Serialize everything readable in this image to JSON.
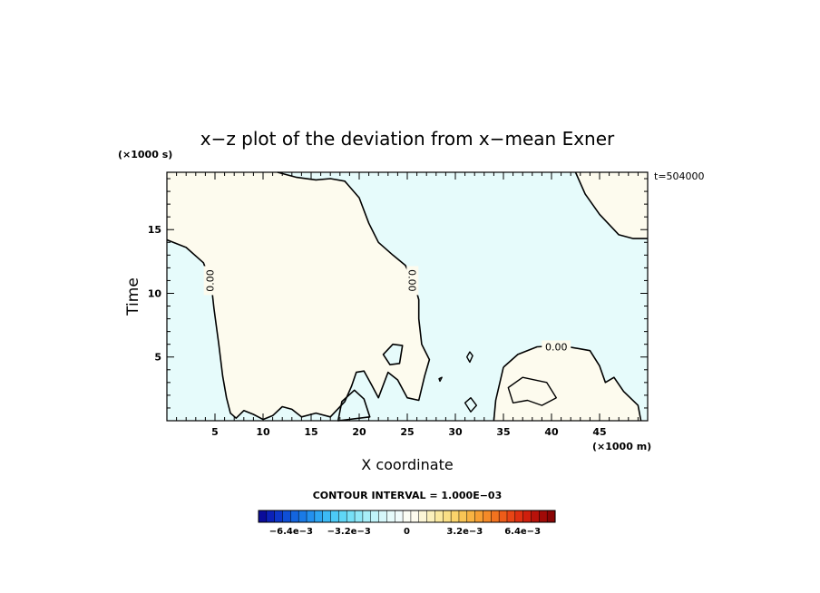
{
  "chart_data": {
    "type": "contour",
    "title": "x−z plot of the deviation from x−mean Exner",
    "xlabel": "X coordinate",
    "ylabel": "Time",
    "x_unit": "(×1000 m)",
    "y_unit": "(×1000 s)",
    "time_stamp": "t=504000",
    "xlim": [
      0,
      50
    ],
    "ylim": [
      0,
      19.5
    ],
    "x_ticks": [
      5,
      10,
      15,
      20,
      25,
      30,
      35,
      40,
      45
    ],
    "y_ticks": [
      5,
      10,
      15
    ],
    "contour_labels": [
      "0.00",
      "0.00",
      "0.00"
    ],
    "contour_label_positions": [
      [
        4.5,
        11.0
      ],
      [
        25.5,
        11.0
      ],
      [
        40.5,
        5.8
      ]
    ],
    "region_colors": {
      "positive": "#fdfbee",
      "negative": "#e6fbfb"
    },
    "zero_contour_boundary_positive_region": [
      [
        0,
        14.2
      ],
      [
        2,
        13.6
      ],
      [
        3.8,
        12.4
      ],
      [
        4.6,
        10.8
      ],
      [
        4.9,
        8.8
      ],
      [
        5.4,
        6.0
      ],
      [
        5.8,
        3.5
      ],
      [
        6.2,
        1.8
      ],
      [
        6.6,
        0.6
      ],
      [
        7.2,
        0.2
      ],
      [
        8,
        0.8
      ],
      [
        9,
        0.5
      ],
      [
        10,
        0.1
      ],
      [
        11,
        0.4
      ],
      [
        12,
        1.1
      ],
      [
        13,
        0.9
      ],
      [
        14,
        0.3
      ],
      [
        15.5,
        0.6
      ],
      [
        17,
        0.3
      ],
      [
        18.5,
        1.5
      ],
      [
        19.2,
        2.7
      ],
      [
        19.7,
        3.8
      ],
      [
        20.5,
        3.9
      ],
      [
        21.3,
        2.8
      ],
      [
        22,
        1.8
      ],
      [
        23,
        3.8
      ],
      [
        24,
        3.2
      ],
      [
        25,
        1.8
      ],
      [
        26.2,
        1.6
      ],
      [
        26.8,
        3.5
      ],
      [
        27.3,
        4.8
      ],
      [
        26.5,
        6.0
      ],
      [
        26.2,
        8.0
      ],
      [
        26.2,
        9.5
      ],
      [
        25.7,
        10.8
      ],
      [
        24.8,
        12.2
      ],
      [
        23.5,
        13.0
      ],
      [
        22,
        14.0
      ],
      [
        21,
        15.5
      ],
      [
        20,
        17.5
      ],
      [
        18.5,
        18.8
      ],
      [
        17,
        19.0
      ],
      [
        15.5,
        18.9
      ],
      [
        13.5,
        19.1
      ],
      [
        11.5,
        19.5
      ],
      [
        0,
        19.5
      ]
    ],
    "zero_contour_positive_region_upper_right": [
      [
        42.5,
        19.5
      ],
      [
        43.5,
        17.8
      ],
      [
        45,
        16.2
      ],
      [
        47,
        14.6
      ],
      [
        48.5,
        14.3
      ],
      [
        50,
        14.3
      ],
      [
        50,
        19.5
      ]
    ],
    "zero_contour_positive_region_lower_right": [
      [
        35,
        4.2
      ],
      [
        36.5,
        5.2
      ],
      [
        38.5,
        5.8
      ],
      [
        41,
        5.9
      ],
      [
        44,
        5.5
      ],
      [
        45,
        4.3
      ],
      [
        45.6,
        3.0
      ],
      [
        46.5,
        3.4
      ],
      [
        47.5,
        2.3
      ],
      [
        49.0,
        1.2
      ],
      [
        49.3,
        0
      ],
      [
        34.0,
        0
      ],
      [
        34.2,
        1.6
      ]
    ],
    "zero_contour_negative_islands": [
      [
        [
          22.5,
          5.2
        ],
        [
          23.5,
          6.0
        ],
        [
          24.5,
          5.9
        ],
        [
          24.2,
          4.5
        ],
        [
          23.2,
          4.4
        ]
      ],
      [
        [
          17.8,
          0
        ],
        [
          18.2,
          1.5
        ],
        [
          19.5,
          2.4
        ],
        [
          20.5,
          1.7
        ],
        [
          21.1,
          0.3
        ]
      ]
    ],
    "zero_contour_small_loops": [
      [
        [
          31.5,
          5.4
        ],
        [
          31.8,
          5.1
        ],
        [
          31.5,
          4.6
        ],
        [
          31.2,
          5.0
        ]
      ],
      [
        [
          35.5,
          2.6
        ],
        [
          37.0,
          3.4
        ],
        [
          39.5,
          3.0
        ],
        [
          40.5,
          1.8
        ],
        [
          39.0,
          1.2
        ],
        [
          37.5,
          1.6
        ],
        [
          36.0,
          1.4
        ]
      ],
      [
        [
          28.3,
          3.3
        ],
        [
          28.6,
          3.4
        ],
        [
          28.4,
          3.1
        ]
      ],
      [
        [
          31.0,
          1.4
        ],
        [
          31.6,
          1.8
        ],
        [
          32.2,
          1.2
        ],
        [
          31.6,
          0.7
        ]
      ]
    ],
    "colorbar": {
      "title": "CONTOUR INTERVAL = 1.000E−03",
      "tick_labels": [
        "−6.4e−3",
        "−3.2e−3",
        "0",
        "3.2e−3",
        "6.4e−3"
      ],
      "tick_values": [
        -0.0064,
        -0.0032,
        0,
        0.0032,
        0.0064
      ],
      "vmin": -0.0082,
      "vmax": 0.0082,
      "colors": [
        "#0a0c9a",
        "#0b21b8",
        "#0d36c9",
        "#0f4fd6",
        "#1465df",
        "#1a7ae6",
        "#2390ee",
        "#2ea6f2",
        "#3cbaf5",
        "#4ccaf6",
        "#5fd6f6",
        "#76e0f7",
        "#90e8f8",
        "#a8eff9",
        "#c0f4fa",
        "#d6f8fb",
        "#e6fbfb",
        "#f0fcfc",
        "#fbfdf4",
        "#fdfbee",
        "#fcf6d6",
        "#fbf0bb",
        "#fbe99f",
        "#fadf85",
        "#fad46b",
        "#f9c555",
        "#f8b342",
        "#f79f33",
        "#f58a28",
        "#f2731f",
        "#ee5c19",
        "#e84515",
        "#df3011",
        "#cf1f0d",
        "#b8120a",
        "#a10a07",
        "#8a0505"
      ]
    }
  }
}
